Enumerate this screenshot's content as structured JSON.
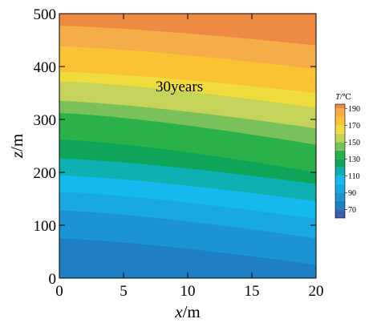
{
  "chart_data": {
    "type": "contour",
    "annotation": "30years",
    "xlabel": {
      "var": "x",
      "unit": "/m"
    },
    "ylabel": {
      "var": "z",
      "unit": "/m"
    },
    "xlim": [
      0,
      20
    ],
    "ylim": [
      0,
      500
    ],
    "x_ticks": [
      "0",
      "5",
      "10",
      "15",
      "20"
    ],
    "y_ticks": [
      "0",
      "100",
      "200",
      "300",
      "400",
      "500"
    ],
    "colorbar": {
      "title_var": "T",
      "title_unit": "/℃",
      "range": [
        60,
        195
      ],
      "tick_labels": [
        "190",
        "170",
        "150",
        "130",
        "110",
        "90",
        "70"
      ],
      "tick_values": [
        190,
        170,
        150,
        130,
        110,
        90,
        70
      ]
    },
    "levels": [
      {
        "t": 65,
        "color": "#3f5eac",
        "z_left": 0,
        "z_right": 0
      },
      {
        "t": 75,
        "color": "#1f7fc4",
        "z_left": 75,
        "z_right": 25
      },
      {
        "t": 85,
        "color": "#1c93d4",
        "z_left": 128,
        "z_right": 75
      },
      {
        "t": 95,
        "color": "#19a9e2",
        "z_left": 163,
        "z_right": 112
      },
      {
        "t": 105,
        "color": "#14b9ee",
        "z_left": 194,
        "z_right": 145
      },
      {
        "t": 115,
        "color": "#0eb0b2",
        "z_left": 226,
        "z_right": 178
      },
      {
        "t": 125,
        "color": "#0ea55a",
        "z_left": 262,
        "z_right": 200
      },
      {
        "t": 135,
        "color": "#2ab14a",
        "z_left": 312,
        "z_right": 252
      },
      {
        "t": 145,
        "color": "#7bc15b",
        "z_left": 335,
        "z_right": 283
      },
      {
        "t": 155,
        "color": "#c6d35a",
        "z_left": 372,
        "z_right": 322
      },
      {
        "t": 165,
        "color": "#f0dc3c",
        "z_left": 390,
        "z_right": 350
      },
      {
        "t": 175,
        "color": "#fbc234",
        "z_left": 438,
        "z_right": 395
      },
      {
        "t": 185,
        "color": "#f5ad4a",
        "z_left": 477,
        "z_right": 440
      },
      {
        "t": 195,
        "color": "#ee8a42",
        "z_left": 520,
        "z_right": 468
      }
    ]
  }
}
